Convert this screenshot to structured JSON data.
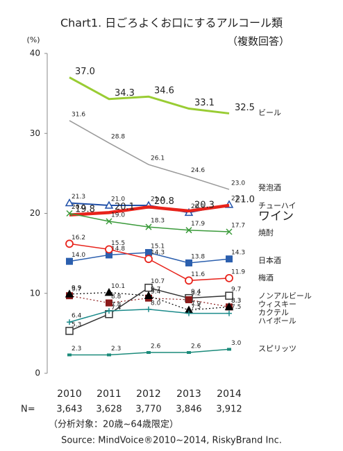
{
  "chart_data": {
    "type": "line",
    "title": "Chart1. 日ごろよくお口にするアルコール類",
    "subtitle": "（複数回答）",
    "y_label": "(%)",
    "categories": [
      "2010",
      "2011",
      "2012",
      "2013",
      "2014"
    ],
    "sample_label": "N=",
    "sample_sizes": [
      "3,643",
      "3,628",
      "3,770",
      "3,846",
      "3,912"
    ],
    "footnote": "（分析対象：20歳~64歳限定）",
    "source": "Source: MindVoice®2010~2014, RiskyBrand Inc.",
    "ylim": [
      0,
      40
    ],
    "yticks": [
      0,
      10,
      20,
      30,
      40
    ],
    "series": [
      {
        "name": "ビール",
        "color": "#99cc33",
        "width": 3,
        "marker": "none",
        "big": true,
        "values": [
          37.0,
          34.3,
          34.6,
          33.1,
          32.5
        ],
        "value_labels": [
          "37.0",
          "34.3",
          "34.6",
          "33.1",
          "32.5"
        ]
      },
      {
        "name": "発泡酒",
        "color": "#999999",
        "width": 1.5,
        "marker": "none",
        "values": [
          31.6,
          28.8,
          26.1,
          24.6,
          23.0
        ],
        "value_labels": [
          "31.6",
          "28.8",
          "26.1",
          "24.6",
          "23.0"
        ]
      },
      {
        "name": "チューハイ",
        "color": "#1f4fa8",
        "width": 2,
        "marker": "tri-open",
        "values": [
          21.3,
          21.0,
          21.0,
          20.1,
          21.1
        ],
        "value_labels": [
          "21.3",
          "21.0",
          "21.0",
          "20.1",
          "21.1"
        ]
      },
      {
        "name": "ワイン",
        "color": "#e8231b",
        "width": 4.5,
        "marker": "none",
        "big": true,
        "values": [
          19.8,
          20.1,
          20.8,
          20.3,
          21.0
        ],
        "value_labels": [
          "19.8",
          "20.1",
          "20.8",
          "20.3",
          "21.0"
        ]
      },
      {
        "name": "焼酎",
        "color": "#3a9a3a",
        "width": 1.5,
        "marker": "x",
        "values": [
          20.0,
          19.0,
          18.3,
          17.9,
          17.7
        ],
        "value_labels": [
          "20.0",
          "19.0",
          "18.3",
          "17.9",
          "17.7"
        ]
      },
      {
        "name": "日本酒",
        "color": "#2b5fae",
        "width": 1.5,
        "marker": "square",
        "values": [
          14.0,
          14.8,
          15.1,
          13.8,
          14.3
        ],
        "value_labels": [
          "14.0",
          "14.8",
          "15.1",
          "13.8",
          "14.3"
        ]
      },
      {
        "name": "梅酒",
        "color": "#e8231b",
        "width": 1.5,
        "marker": "circle-open",
        "values": [
          16.2,
          15.5,
          14.3,
          11.6,
          11.9
        ],
        "value_labels": [
          "16.2",
          "15.5",
          "14.3",
          "11.6",
          "11.9"
        ]
      },
      {
        "name": "ノンアルビール",
        "color": "#333333",
        "width": 1.5,
        "marker": "square-open",
        "values": [
          5.3,
          7.4,
          10.7,
          9.4,
          9.7
        ],
        "value_labels": [
          "5.3",
          "7.4",
          "10.7",
          "9.4",
          "9.7"
        ]
      },
      {
        "name": "ウィスキー",
        "color": "#8b1a1a",
        "width": 1.2,
        "dash": true,
        "marker": "square",
        "values": [
          9.7,
          8.8,
          9.4,
          9.2,
          8.3
        ],
        "value_labels": [
          "9.7",
          "8.8",
          "9.4",
          "9.2",
          "8.3"
        ]
      },
      {
        "name": "カクテル",
        "color": "#000000",
        "width": 1.2,
        "dash": true,
        "marker": "tri",
        "values": [
          9.9,
          10.1,
          9.7,
          7.9,
          8.3
        ],
        "value_labels": [
          "9.9",
          "10.1",
          "9.7",
          "7.9",
          "8.3"
        ]
      },
      {
        "name": "ハイボール",
        "color": "#1a8a8a",
        "width": 1.5,
        "marker": "plus",
        "values": [
          6.4,
          7.8,
          8.0,
          7.5,
          7.5
        ],
        "value_labels": [
          "6.4",
          "7.8",
          "8.0",
          "7.5",
          "7.5"
        ]
      },
      {
        "name": "スピリッツ",
        "color": "#1a8a7a",
        "width": 1.5,
        "marker": "square-small",
        "values": [
          2.3,
          2.3,
          2.6,
          2.6,
          3.0
        ],
        "value_labels": [
          "2.3",
          "2.3",
          "2.6",
          "2.6",
          "3.0"
        ]
      }
    ]
  }
}
